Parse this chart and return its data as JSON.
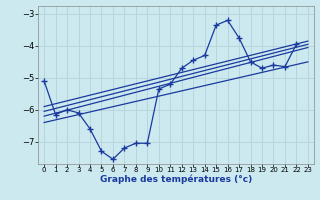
{
  "xlabel": "Graphe des températures (°c)",
  "bg_color": "#cce9f0",
  "line_color": "#1a3a9e",
  "grid_color": "#b8d4dc",
  "xlim": [
    -0.5,
    23.5
  ],
  "ylim": [
    -7.7,
    -2.75
  ],
  "yticks": [
    -7,
    -6,
    -5,
    -4,
    -3
  ],
  "xticks": [
    0,
    1,
    2,
    3,
    4,
    5,
    6,
    7,
    8,
    9,
    10,
    11,
    12,
    13,
    14,
    15,
    16,
    17,
    18,
    19,
    20,
    21,
    22,
    23
  ],
  "data_line": [
    [
      0,
      -5.1
    ],
    [
      1,
      -6.15
    ],
    [
      2,
      -6.0
    ],
    [
      3,
      -6.1
    ],
    [
      4,
      -6.6
    ],
    [
      5,
      -7.3
    ],
    [
      6,
      -7.55
    ],
    [
      7,
      -7.2
    ],
    [
      8,
      -7.05
    ],
    [
      9,
      -7.05
    ],
    [
      10,
      -5.35
    ],
    [
      11,
      -5.2
    ],
    [
      12,
      -4.7
    ],
    [
      13,
      -4.45
    ],
    [
      14,
      -4.3
    ],
    [
      15,
      -3.35
    ],
    [
      16,
      -3.2
    ],
    [
      17,
      -3.75
    ],
    [
      18,
      -4.5
    ],
    [
      19,
      -4.7
    ],
    [
      20,
      -4.6
    ],
    [
      21,
      -4.65
    ],
    [
      22,
      -3.95
    ]
  ],
  "reg_lines": [
    [
      [
        0,
        -5.9
      ],
      [
        23,
        -3.85
      ]
    ],
    [
      [
        0,
        -6.05
      ],
      [
        23,
        -3.95
      ]
    ],
    [
      [
        0,
        -6.2
      ],
      [
        23,
        -4.05
      ]
    ],
    [
      [
        0,
        -6.4
      ],
      [
        23,
        -4.5
      ]
    ]
  ]
}
